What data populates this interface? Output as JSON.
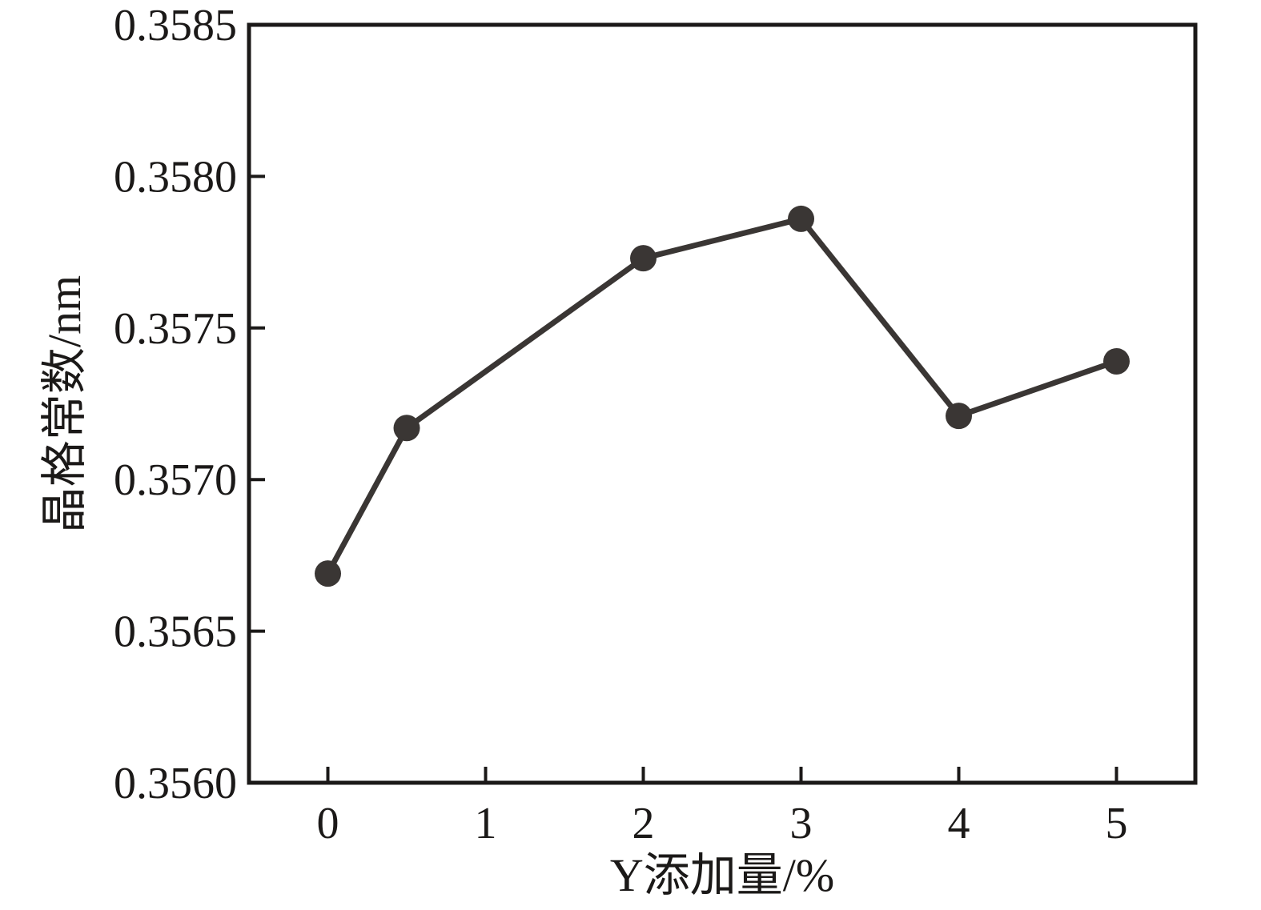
{
  "chart_data": {
    "type": "line",
    "title": "",
    "xlabel": "Y添加量/%",
    "ylabel": "晶格常数/nm",
    "x": [
      0,
      0.5,
      2,
      3,
      4,
      5
    ],
    "y": [
      0.35669,
      0.35717,
      0.35773,
      0.35786,
      0.35721,
      0.35739
    ],
    "series_name": "lattice-constant",
    "xlim": [
      -0.5,
      5.5
    ],
    "ylim": [
      0.356,
      0.3585
    ],
    "x_ticks": [
      0,
      1,
      2,
      3,
      4,
      5
    ],
    "x_tick_labels": [
      "0",
      "1",
      "2",
      "3",
      "4",
      "5"
    ],
    "y_ticks": [
      0.3585,
      0.358,
      0.3575,
      0.357,
      0.3565,
      0.356
    ],
    "y_tick_labels": [
      "0.3585",
      "0.3580",
      "0.3575",
      "0.3570",
      "0.3565",
      "0.3560"
    ],
    "grid": false,
    "legend": null,
    "marker": "circle",
    "colors": {
      "line": "#3a3634",
      "marker": "#3a3634",
      "axis": "#1b1918",
      "text": "#1b1918",
      "background": "#ffffff"
    }
  }
}
